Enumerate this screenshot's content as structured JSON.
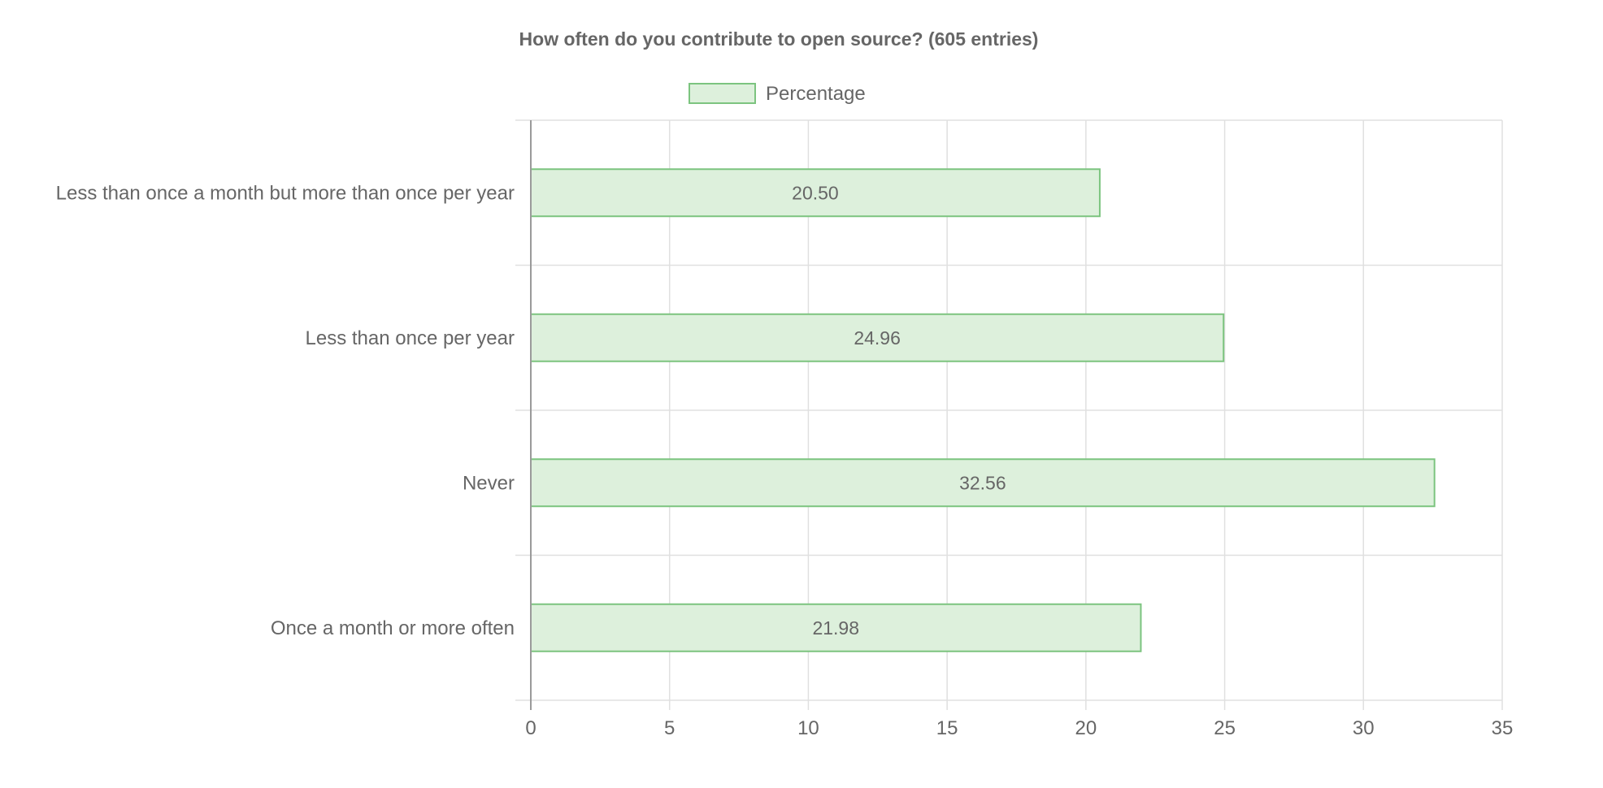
{
  "chart_data": {
    "type": "bar",
    "orientation": "horizontal",
    "title": "How often do you contribute to open source? (605 entries)",
    "categories": [
      "Less than once a month but more than once per year",
      "Less than once per year",
      "Never",
      "Once a month or more often"
    ],
    "series": [
      {
        "name": "Percentage",
        "values": [
          20.5,
          24.96,
          32.56,
          21.98
        ],
        "labels": [
          "20.50",
          "24.96",
          "32.56",
          "21.98"
        ]
      }
    ],
    "xlim": [
      0,
      35
    ],
    "xticks": [
      "0",
      "5",
      "10",
      "15",
      "20",
      "25",
      "30",
      "35"
    ],
    "xlabel": "",
    "ylabel": "",
    "grid": true,
    "legend_position": "top",
    "colors": {
      "bar_fill": "#ddf0dc",
      "bar_stroke": "#7cc47f",
      "grid": "#e0e0e0",
      "axis": "#9a9a9a",
      "text": "#666666"
    }
  }
}
